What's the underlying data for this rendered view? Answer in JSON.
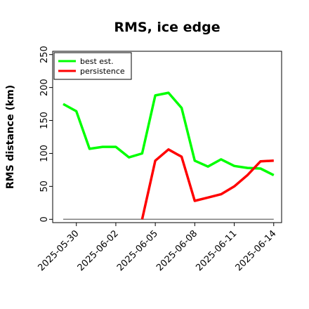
{
  "chart_data": {
    "type": "line",
    "title": "RMS, ice edge",
    "xlabel": "",
    "ylabel": "RMS distance (km)",
    "ylim": [
      -5,
      255
    ],
    "yticks": [
      0,
      50,
      100,
      150,
      200,
      250
    ],
    "x_tick_labels": [
      "2025-05-30",
      "2025-06-02",
      "2025-06-05",
      "2025-06-08",
      "2025-06-11",
      "2025-06-14"
    ],
    "x_tick_days": [
      0,
      3,
      6,
      9,
      12,
      15
    ],
    "xlim_days": [
      -1.8,
      15.6
    ],
    "legend_position": "upper-left",
    "colors": {
      "best_est": "#00ff00",
      "persistence": "#ff0000",
      "baseline": "#808080"
    },
    "series": [
      {
        "name": "best est.",
        "color": "#00ff00",
        "x_days": [
          -1,
          0,
          1,
          2,
          3,
          4,
          5,
          6,
          7,
          8,
          9,
          10,
          11,
          12,
          13,
          14,
          15
        ],
        "values": [
          175,
          164,
          107,
          110,
          110,
          94,
          100,
          188,
          192,
          169,
          89,
          80,
          91,
          81,
          78,
          77,
          67
        ]
      },
      {
        "name": "persistence",
        "color": "#ff0000",
        "x_days": [
          5,
          6,
          7,
          8,
          9,
          10,
          11,
          12,
          13,
          14,
          15
        ],
        "values": [
          0,
          89,
          106,
          95,
          28,
          33,
          38,
          50,
          67,
          88,
          89
        ]
      }
    ],
    "baseline": {
      "x_days": [
        -1,
        15
      ],
      "value": 0
    }
  }
}
